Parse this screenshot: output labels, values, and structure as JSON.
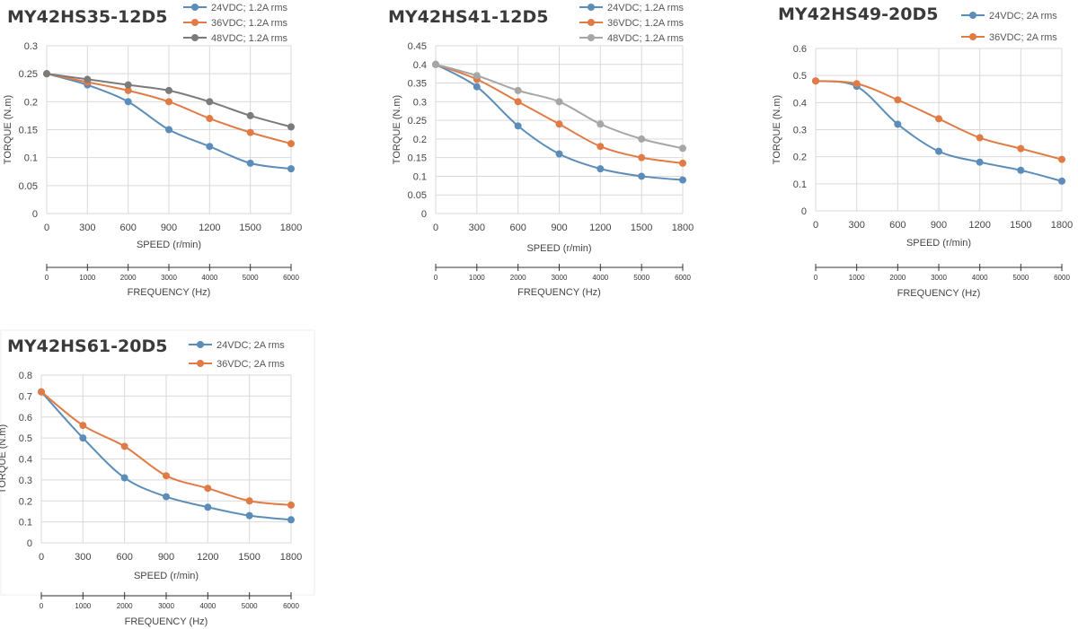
{
  "chart_data": [
    {
      "type": "line",
      "title": "MY42HS35-12D5",
      "xlabel": "SPEED (r/min)",
      "ylabel": "TORQUE (N.m)",
      "x2label": "FREQUENCY (Hz)",
      "x": [
        0,
        300,
        600,
        900,
        1200,
        1500,
        1800
      ],
      "x2": [
        0,
        1000,
        2000,
        3000,
        4000,
        5000,
        6000
      ],
      "ylim": [
        0,
        0.3
      ],
      "yticks": [
        "0",
        "0.05",
        "0.1",
        "0.15",
        "0.2",
        "0.25",
        "0.3"
      ],
      "series": [
        {
          "name": "24VDC; 1.2A rms",
          "color": "#5b8db8",
          "values": [
            0.25,
            0.23,
            0.2,
            0.15,
            0.12,
            0.09,
            0.08
          ]
        },
        {
          "name": "36VDC; 1.2A rms",
          "color": "#e07b45",
          "values": [
            0.25,
            0.235,
            0.22,
            0.2,
            0.17,
            0.145,
            0.125
          ]
        },
        {
          "name": "48VDC; 1.2A rms",
          "color": "#7b7b7b",
          "values": [
            0.25,
            0.24,
            0.23,
            0.22,
            0.2,
            0.175,
            0.155
          ]
        }
      ]
    },
    {
      "type": "line",
      "title": "MY42HS41-12D5",
      "xlabel": "SPEED (r/min)",
      "ylabel": "TORQUE (N.m)",
      "x2label": "FREQUENCY (Hz)",
      "x": [
        0,
        300,
        600,
        900,
        1200,
        1500,
        1800
      ],
      "x2": [
        0,
        1000,
        2000,
        3000,
        4000,
        5000,
        6000
      ],
      "ylim": [
        0,
        0.45
      ],
      "yticks": [
        "0",
        "0.05",
        "0.1",
        "0.15",
        "0.2",
        "0.25",
        "0.3",
        "0.35",
        "0.4",
        "0.45"
      ],
      "series": [
        {
          "name": "24VDC; 1.2A rms",
          "color": "#5b8db8",
          "values": [
            0.4,
            0.34,
            0.235,
            0.16,
            0.12,
            0.1,
            0.09
          ]
        },
        {
          "name": "36VDC; 1.2A rms",
          "color": "#e07b45",
          "values": [
            0.4,
            0.36,
            0.3,
            0.24,
            0.18,
            0.15,
            0.135
          ]
        },
        {
          "name": "48VDC; 1.2A rms",
          "color": "#a6a6a6",
          "values": [
            0.4,
            0.37,
            0.33,
            0.3,
            0.24,
            0.2,
            0.175
          ]
        }
      ]
    },
    {
      "type": "line",
      "title": "MY42HS49-20D5",
      "xlabel": "SPEED (r/min)",
      "ylabel": "TORQUE (N.m)",
      "x2label": "FREQUENCY (Hz)",
      "x": [
        0,
        300,
        600,
        900,
        1200,
        1500,
        1800
      ],
      "x2": [
        0,
        1000,
        2000,
        3000,
        4000,
        5000,
        6000
      ],
      "ylim": [
        0,
        0.6
      ],
      "yticks": [
        "0",
        "0.1",
        "0.2",
        "0.3",
        "0.4",
        "0.5",
        "0.6"
      ],
      "series": [
        {
          "name": "24VDC; 2A rms",
          "color": "#5b8db8",
          "values": [
            0.48,
            0.46,
            0.32,
            0.22,
            0.18,
            0.15,
            0.11
          ]
        },
        {
          "name": "36VDC; 2A rms",
          "color": "#e07b45",
          "values": [
            0.48,
            0.47,
            0.41,
            0.34,
            0.27,
            0.23,
            0.19
          ]
        }
      ]
    },
    {
      "type": "line",
      "title": "MY42HS61-20D5",
      "xlabel": "SPEED (r/min)",
      "ylabel": "TORQUE (N.m)",
      "x2label": "FREQUENCY (Hz)",
      "x": [
        0,
        300,
        600,
        900,
        1200,
        1500,
        1800
      ],
      "x2": [
        0,
        1000,
        2000,
        3000,
        4000,
        5000,
        6000
      ],
      "ylim": [
        0,
        0.8
      ],
      "yticks": [
        "0",
        "0.1",
        "0.2",
        "0.3",
        "0.4",
        "0.5",
        "0.6",
        "0.7",
        "0.8"
      ],
      "series": [
        {
          "name": "24VDC; 2A rms",
          "color": "#5b8db8",
          "values": [
            0.72,
            0.5,
            0.31,
            0.22,
            0.17,
            0.13,
            0.11
          ]
        },
        {
          "name": "36VDC; 2A rms",
          "color": "#e07b45",
          "values": [
            0.72,
            0.56,
            0.46,
            0.32,
            0.26,
            0.2,
            0.18
          ]
        }
      ]
    }
  ]
}
